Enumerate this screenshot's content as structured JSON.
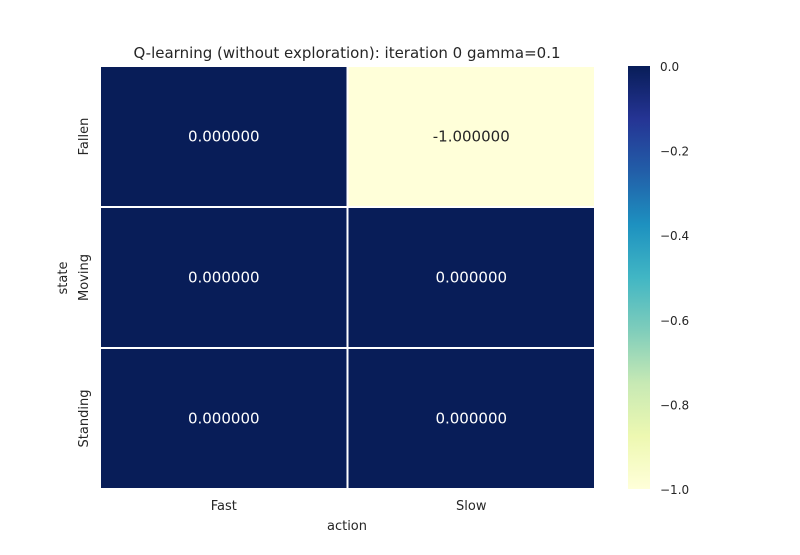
{
  "chart_data": {
    "type": "heatmap",
    "title": "Q-learning (without exploration): iteration 0 gamma=0.1",
    "xlabel": "action",
    "ylabel": "state",
    "x_categories": [
      "Fast",
      "Slow"
    ],
    "y_categories": [
      "Fallen",
      "Moving",
      "Standing"
    ],
    "values": [
      [
        0.0,
        -1.0
      ],
      [
        0.0,
        0.0
      ],
      [
        0.0,
        0.0
      ]
    ],
    "cell_labels": [
      [
        "0.000000",
        "-1.000000"
      ],
      [
        "0.000000",
        "0.000000"
      ],
      [
        "0.000000",
        "0.000000"
      ]
    ],
    "colorbar": {
      "vmin": -1.0,
      "vmax": 0.0,
      "ticks": [
        0.0,
        -0.2,
        -0.4,
        -0.6,
        -0.8,
        -1.0
      ],
      "tick_labels": [
        "0.0",
        "−0.2",
        "−0.4",
        "−0.6",
        "−0.8",
        "−1.0"
      ],
      "colormap": "YlGnBu",
      "colors": [
        "#ffffd9",
        "#edf8b1",
        "#c7e9b4",
        "#7fcdbb",
        "#41b6c4",
        "#1d91c0",
        "#225ea8",
        "#253494",
        "#081d58"
      ]
    },
    "grid": false,
    "cell_border_color": "#ffffff"
  }
}
